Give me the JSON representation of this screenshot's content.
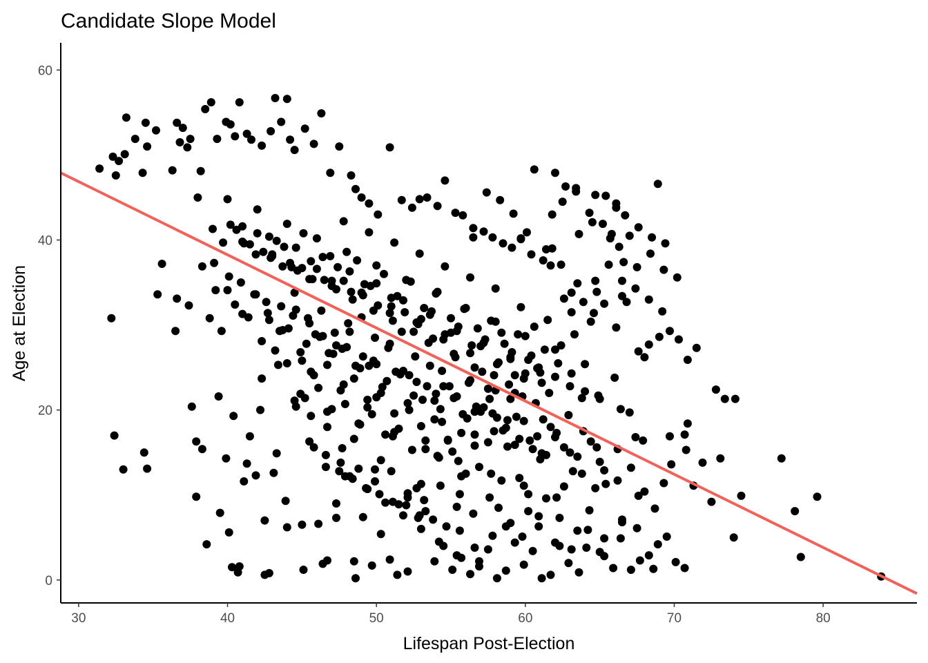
{
  "chart_data": {
    "type": "scatter",
    "title": "Candidate Slope Model",
    "xlabel": "Lifespan Post-Election",
    "ylabel": "Age at Election",
    "xlim": [
      28.8,
      86.3
    ],
    "ylim": [
      -2.7,
      63.2
    ],
    "xticks": [
      30,
      40,
      50,
      60,
      70,
      80
    ],
    "yticks": [
      0,
      20,
      40,
      60
    ],
    "grid": false,
    "legend": "none",
    "colors": {
      "points": "#000000",
      "fit_line": "#f0625a"
    },
    "fit_line": {
      "x": [
        28.8,
        86.3
      ],
      "y": [
        47.9,
        -1.6
      ]
    },
    "points_x": [
      31.4,
      32.3,
      32.5,
      32.7,
      33.1,
      33.2,
      33.8,
      34.3,
      34.5,
      34.6,
      35.2,
      36.3,
      36.6,
      36.8,
      37.0,
      37.3,
      37.5,
      38.2,
      38.5,
      38.9,
      39.3,
      39.9,
      40.2,
      40.5,
      40.8,
      41.3,
      41.6,
      42.3,
      42.9,
      43.2,
      43.6,
      44.0,
      44.2,
      44.5,
      45.2,
      45.8,
      46.3,
      46.9,
      47.5,
      48.3,
      48.6,
      49.0,
      49.5,
      50.1,
      50.9,
      51.7,
      52.4,
      52.9,
      53.4,
      54.1,
      54.6,
      55.3,
      55.8,
      56.5,
      57.2,
      57.8,
      58.5,
      59.1,
      59.7,
      60.4,
      61.2,
      61.8,
      62.4,
      63.1,
      63.9,
      64.6,
      65.3,
      66.1,
      66.8,
      67.6,
      68.3,
      69.0,
      69.7,
      70.3,
      70.9,
      71.5,
      72.8,
      73.4,
      74.1,
      77.2,
      78.1,
      79.6,
      83.9,
      32.2,
      32.4,
      33.0,
      34.4,
      34.6,
      35.3,
      36.5,
      37.6,
      37.9,
      38.3,
      39.4,
      39.9,
      40.3,
      40.7,
      41.1,
      41.5,
      41.9,
      42.5,
      42.8,
      43.3,
      43.9,
      44.6,
      45.1,
      45.6,
      46.1,
      46.7,
      47.3,
      47.9,
      48.5,
      49.1,
      49.7,
      50.3,
      50.9,
      51.5,
      52.1,
      52.7,
      53.3,
      53.9,
      54.5,
      55.1,
      55.7,
      56.3,
      56.9,
      57.5,
      58.1,
      58.7,
      59.3,
      59.9,
      60.5,
      61.1,
      61.7,
      62.3,
      62.9,
      63.5,
      64.1,
      64.7,
      65.3,
      65.9,
      66.5,
      67.1,
      67.7,
      68.3,
      68.9,
      69.5,
      70.1,
      70.7,
      71.3,
      72.5,
      73.1,
      74.0,
      74.5,
      78.5,
      40.1,
      40.8,
      42.5,
      45.0,
      46.4,
      47.3,
      48.6,
      49.9,
      51.4,
      52.8,
      54.1,
      55.6,
      56.9,
      58.2,
      59.6,
      60.9,
      62.3,
      63.6,
      65.0,
      66.4,
      67.9,
      69.3,
      70.7,
      37.9,
      38.6,
      39.5,
      40.4,
      41.3,
      42.2,
      43.1,
      44.0,
      44.9,
      45.8,
      46.7,
      47.6,
      48.5,
      49.4,
      50.3,
      51.2,
      52.1,
      53.0,
      53.9,
      54.8,
      55.7,
      56.6,
      57.5,
      58.4,
      59.3,
      60.2,
      61.1,
      62.0,
      62.9,
      63.8,
      64.7,
      65.6,
      66.5,
      67.4,
      68.3,
      69.2,
      38.8,
      39.6,
      40.5,
      41.4,
      42.3,
      43.2,
      44.1,
      45.0,
      45.9,
      46.8,
      47.7,
      48.6,
      49.5,
      50.4,
      51.3,
      52.2,
      53.1,
      54.0,
      54.9,
      55.8,
      56.7,
      57.6,
      58.5,
      59.4,
      60.3,
      61.2,
      62.1,
      63.0,
      63.9,
      64.8,
      65.7,
      66.6,
      67.5,
      68.4,
      69.3,
      70.2,
      39.1,
      40.0,
      40.9,
      41.8,
      42.7,
      43.6,
      44.5,
      45.4,
      46.3,
      47.2,
      48.1,
      49.0,
      49.9,
      50.8,
      51.7,
      52.6,
      53.5,
      54.4,
      55.3,
      56.2,
      57.1,
      58.0,
      58.9,
      59.8,
      60.7,
      61.6,
      62.5,
      63.4,
      64.3,
      65.2,
      66.1,
      67.0,
      40.2,
      41.1,
      42.0,
      42.9,
      43.8,
      44.7,
      45.6,
      46.5,
      47.4,
      48.3,
      49.2,
      50.1,
      51.0,
      51.9,
      52.8,
      53.7,
      54.6,
      55.5,
      56.4,
      57.3,
      58.2,
      59.1,
      60.0,
      60.9,
      61.8,
      62.7,
      63.6,
      64.5,
      65.4,
      66.3,
      41.0,
      41.9,
      42.8,
      43.7,
      44.6,
      45.5,
      46.4,
      47.3,
      48.2,
      49.1,
      50.0,
      50.9,
      51.8,
      52.7,
      53.6,
      54.5,
      55.4,
      56.3,
      57.2,
      58.1,
      59.0,
      59.9,
      60.8,
      61.7,
      62.6,
      63.5,
      64.4,
      42.6,
      43.5,
      44.4,
      45.3,
      46.2,
      47.1,
      48.0,
      48.9,
      49.8,
      50.7,
      51.6,
      52.5,
      53.4,
      54.3,
      55.2,
      56.1,
      57.0,
      57.9,
      58.8,
      59.7,
      60.6,
      61.5,
      62.4,
      63.3,
      44.0,
      44.9,
      45.8,
      46.7,
      47.6,
      48.5,
      49.4,
      50.3,
      51.2,
      52.1,
      53.0,
      53.9,
      54.8,
      55.7,
      56.6,
      57.5,
      58.4,
      59.3,
      60.2,
      61.1,
      62.0,
      45.2,
      46.1,
      47.0,
      47.9,
      48.8,
      49.7,
      50.6,
      51.5,
      52.4,
      53.3,
      54.2,
      55.1,
      56.0,
      56.9,
      57.8,
      58.7,
      59.6,
      60.5,
      61.4,
      46.6,
      47.5,
      48.4,
      49.3,
      50.2,
      51.1,
      52.0,
      52.9,
      53.8,
      54.7,
      55.6,
      56.5,
      57.4,
      58.3,
      59.2,
      60.1,
      39.7,
      40.6,
      41.5,
      42.4,
      43.3,
      44.2,
      45.1,
      46.0,
      46.9,
      47.8,
      48.7,
      49.6,
      50.5,
      51.4,
      52.3,
      53.2,
      54.1,
      55.0,
      55.9,
      56.8,
      57.7,
      58.6,
      59.5,
      60.4,
      61.3,
      62.2,
      63.1,
      64.0,
      64.9,
      65.8,
      66.7,
      67.6,
      68.5,
      69.4,
      43.0,
      44.3,
      45.7,
      47.0,
      48.4,
      49.8,
      51.1,
      52.5,
      53.8,
      55.2,
      56.6,
      57.9,
      59.3,
      60.6,
      62.0,
      63.4,
      64.7,
      66.1,
      47.8,
      49.5,
      51.2,
      52.9,
      54.6,
      56.3,
      58.0,
      59.7,
      61.4,
      63.1,
      64.8,
      66.5,
      35.6,
      36.6,
      37.4,
      38.3,
      39.2,
      40.1,
      41.0,
      41.9,
      42.8,
      43.7,
      44.6,
      45.5,
      46.4,
      47.3,
      48.2,
      49.1,
      50.0,
      50.9,
      51.8,
      52.7,
      53.6,
      54.5,
      55.4,
      56.3,
      57.2,
      58.1,
      59.0,
      59.9,
      60.8,
      61.7,
      62.6,
      63.5,
      64.4,
      65.3,
      66.2,
      67.1,
      68.0,
      68.9,
      38.0,
      39.0,
      40.0,
      41.0,
      42.0,
      43.0,
      44.0,
      45.0,
      46.0,
      47.0,
      48.0,
      49.0,
      50.0,
      51.0,
      52.0,
      53.0,
      54.0,
      55.0,
      56.0,
      57.0,
      58.0,
      59.0,
      60.0,
      61.0,
      62.0,
      63.0,
      64.0,
      65.0,
      66.0,
      67.0,
      68.0,
      42.3,
      43.4,
      44.5,
      45.6,
      46.7,
      47.8,
      48.9,
      50.0,
      51.1,
      52.2,
      53.3,
      54.4,
      55.5,
      56.6,
      57.7,
      58.8,
      59.9,
      61.0,
      62.1,
      63.2,
      64.3,
      65.4,
      66.5,
      67.6,
      68.7,
      69.8,
      70.9,
      45.5,
      46.6,
      47.7,
      48.8,
      49.9,
      51.0,
      52.1,
      53.2,
      54.3,
      55.4,
      56.5,
      57.6,
      58.7,
      59.8,
      60.9,
      62.0,
      63.1,
      64.2,
      65.3,
      66.4,
      67.5,
      68.6,
      69.7,
      70.8,
      71.9,
      48.2,
      49.4,
      50.6,
      51.8,
      53.0,
      54.2,
      55.4,
      56.6,
      57.8,
      59.0,
      60.2,
      61.4,
      62.6,
      63.8,
      65.0,
      66.2,
      67.4,
      68.6,
      69.8,
      71.0
    ],
    "points_y": [
      48.4,
      49.8,
      47.6,
      49.3,
      50.1,
      54.4,
      51.9,
      47.9,
      53.8,
      51.0,
      52.9,
      48.2,
      53.8,
      51.5,
      53.2,
      50.9,
      51.9,
      48.1,
      55.4,
      56.2,
      51.9,
      53.9,
      53.6,
      52.2,
      56.2,
      52.5,
      51.8,
      51.1,
      52.8,
      56.7,
      53.9,
      56.6,
      51.8,
      50.6,
      53.1,
      51.3,
      54.9,
      47.9,
      51.0,
      47.6,
      46.0,
      45.0,
      44.3,
      43.0,
      50.9,
      44.7,
      43.8,
      44.8,
      45.0,
      44.0,
      47.0,
      43.2,
      42.9,
      41.4,
      41.0,
      40.3,
      39.6,
      39.1,
      40.1,
      38.3,
      37.6,
      39.0,
      37.1,
      33.8,
      32.7,
      31.4,
      32.5,
      29.7,
      32.7,
      26.9,
      27.7,
      28.6,
      29.3,
      28.3,
      25.9,
      27.3,
      22.4,
      21.3,
      21.3,
      14.3,
      8.1,
      9.8,
      0.4,
      30.8,
      17.0,
      13.0,
      15.0,
      13.1,
      33.6,
      29.3,
      20.4,
      16.3,
      15.4,
      21.6,
      14.3,
      1.5,
      0.9,
      11.6,
      16.9,
      12.3,
      7.0,
      0.8,
      14.9,
      9.3,
      20.4,
      1.2,
      19.3,
      6.6,
      2.3,
      9.0,
      12.2,
      2.2,
      7.4,
      1.7,
      5.4,
      2.4,
      8.9,
      1.0,
      10.8,
      8.1,
      2.2,
      4.0,
      1.2,
      2.6,
      0.7,
      2.2,
      3.6,
      0.2,
      1.1,
      4.4,
      1.8,
      3.4,
      0.2,
      0.6,
      7.3,
      2.0,
      5.8,
      3.8,
      10.8,
      4.9,
      1.4,
      7.1,
      1.2,
      2.3,
      2.9,
      4.2,
      5.1,
      2.1,
      1.4,
      11.1,
      9.2,
      14.3,
      5.0,
      9.9,
      2.7,
      5.6,
      1.6,
      0.6,
      6.5,
      1.9,
      7.3,
      0.2,
      13.0,
      0.6,
      7.3,
      14.6,
      10.1,
      1.6,
      8.5,
      12.0,
      6.3,
      4.0,
      0.9,
      3.3,
      20.1,
      16.4,
      11.4,
      17.1,
      9.8,
      4.2,
      7.9,
      19.3,
      13.7,
      20.0,
      12.6,
      6.2,
      21.9,
      15.6,
      18.0,
      13.8,
      16.6,
      20.3,
      14.1,
      17.4,
      9.7,
      11.3,
      21.1,
      16.4,
      12.2,
      19.8,
      22.5,
      11.7,
      15.9,
      10.1,
      14.9,
      16.8,
      19.4,
      21.4,
      35.2,
      37.1,
      33.4,
      34.3,
      33.0,
      31.6,
      30.8,
      29.3,
      32.4,
      30.9,
      28.1,
      27.0,
      29.6,
      25.8,
      28.9,
      26.7,
      27.2,
      25.2,
      25.2,
      22.7,
      24.5,
      24.1,
      21.2,
      21.9,
      22.8,
      19.5,
      20.4,
      21.3,
      17.6,
      19.2,
      16.4,
      18.9,
      17.3,
      15.0,
      17.5,
      15.6,
      40.2,
      37.4,
      36.8,
      38.4,
      36.5,
      35.6,
      37.3,
      34.1,
      35.0,
      33.6,
      31.4,
      32.2,
      33.8,
      30.8,
      31.7,
      29.1,
      30.2,
      30.9,
      28.5,
      27.3,
      29.2,
      26.3,
      27.9,
      24.6,
      26.2,
      23.2,
      24.5,
      22.3,
      23.0,
      21.6,
      20.8,
      22.0,
      44.5,
      45.7,
      43.2,
      41.9,
      44.3,
      40.5,
      41.8,
      39.6,
      40.8,
      37.9,
      39.2,
      36.4,
      37.5,
      35.3,
      36.8,
      33.9,
      34.8,
      32.3,
      33.2,
      31.5,
      30.1,
      31.6,
      28.9,
      29.8,
      27.6,
      28.3,
      25.6,
      26.8,
      24.3,
      25.0,
      43.0,
      46.3,
      40.7,
      42.1,
      45.2,
      39.2,
      41.6,
      38.3,
      40.4,
      36.9,
      39.1,
      35.4,
      38.0,
      34.2,
      36.3,
      33.5,
      34.9,
      31.4,
      32.9,
      30.3,
      31.2,
      28.3,
      29.3,
      26.7,
      27.9,
      25.4,
      26.2,
      23.7,
      24.9,
      37.0,
      33.1,
      34.9,
      30.4,
      32.7,
      29.3,
      31.1,
      27.8,
      28.6,
      26.6,
      27.4,
      24.9,
      25.8,
      23.4,
      24.2,
      21.7,
      22.8,
      20.1,
      21.4,
      19.0,
      19.8,
      17.5,
      18.8,
      32.1,
      29.8,
      30.6,
      27.6,
      28.9,
      25.5,
      26.8,
      24.1,
      25.3,
      22.3,
      23.7,
      21.2,
      22.0,
      19.6,
      20.8,
      18.1,
      18.9,
      16.5,
      17.3,
      15.8,
      16.2,
      29.1,
      24.1,
      25.9,
      23.2,
      23.9,
      21.4,
      22.6,
      20.1,
      20.7,
      18.4,
      19.5,
      17.1,
      17.8,
      15.3,
      16.4,
      14.4,
      15.1,
      12.5,
      13.3,
      19.6,
      17.9,
      16.6,
      15.4,
      14.7,
      13.3,
      12.8,
      11.9,
      10.8,
      10.1,
      9.2,
      8.8,
      7.6,
      7.1,
      6.3,
      5.8,
      40.3,
      45.6,
      44.7,
      43.1,
      40.9,
      39.7,
      41.2,
      39.5,
      38.6,
      39.9,
      37.3,
      40.8,
      36.6,
      38.1,
      35.2,
      37.6,
      34.6,
      36.0,
      33.4,
      35.1,
      32.0,
      33.9,
      30.8,
      31.9,
      29.6,
      30.5,
      27.8,
      28.9,
      26.4,
      27.1,
      25.5,
      24.3,
      22.2,
      21.7,
      40.7,
      42.9,
      41.5,
      40.3,
      39.6,
      38.1,
      36.8,
      35.4,
      34.6,
      33.0,
      31.7,
      30.5,
      29.2,
      28.4,
      26.6,
      25.0,
      24.1,
      22.0,
      48.3,
      47.9,
      46.1,
      45.3,
      43.8,
      42.2,
      40.9,
      39.7,
      38.4,
      36.9,
      35.6,
      34.3,
      40.2,
      38.9,
      31.5,
      33.9,
      35.2,
      37.2,
      33.1,
      32.3,
      36.9,
      34.1,
      35.7,
      31.3,
      33.6,
      30.6,
      29.4,
      31.8,
      30.2,
      28.7,
      27.6,
      29.2,
      26.3,
      25.4,
      27.8,
      24.6,
      23.3,
      25.2,
      22.8,
      21.6,
      23.5,
      20.3,
      19.1,
      21.3,
      18.7,
      16.9,
      18.0,
      15.6,
      14.5,
      16.3,
      12.9,
      11.7,
      13.2,
      10.4,
      46.6,
      45.0,
      41.3,
      44.8,
      39.8,
      43.6,
      38.3,
      41.9,
      36.7,
      40.2,
      35.2,
      38.6,
      33.8,
      37.0,
      32.2,
      35.3,
      30.7,
      33.7,
      29.1,
      32.0,
      27.5,
      30.4,
      26.0,
      28.7,
      24.4,
      27.1,
      22.8,
      25.4,
      21.3,
      23.8,
      19.7,
      26.2,
      23.7,
      25.3,
      21.1,
      24.5,
      19.8,
      23.0,
      18.3,
      21.5,
      16.9,
      20.0,
      15.4,
      18.6,
      14.0,
      17.1,
      12.5,
      15.7,
      11.1,
      14.2,
      9.7,
      12.8,
      8.2,
      11.3,
      6.8,
      9.9,
      8.4,
      13.6,
      18.4,
      16.3,
      14.7,
      15.5,
      13.1,
      11.6,
      12.8,
      10.2,
      9.4,
      11.1,
      8.6,
      7.8,
      9.7,
      6.3,
      5.1,
      7.5,
      4.4,
      3.6,
      5.9,
      2.8,
      4.9,
      6.1,
      1.3,
      16.9,
      15.3,
      13.8,
      12.2,
      10.7,
      9.1,
      7.6,
      6.0,
      4.5,
      2.9,
      3.8,
      5.2,
      6.7,
      8.1,
      9.6,
      11.0,
      12.5,
      13.9,
      15.4,
      16.8
    ]
  }
}
